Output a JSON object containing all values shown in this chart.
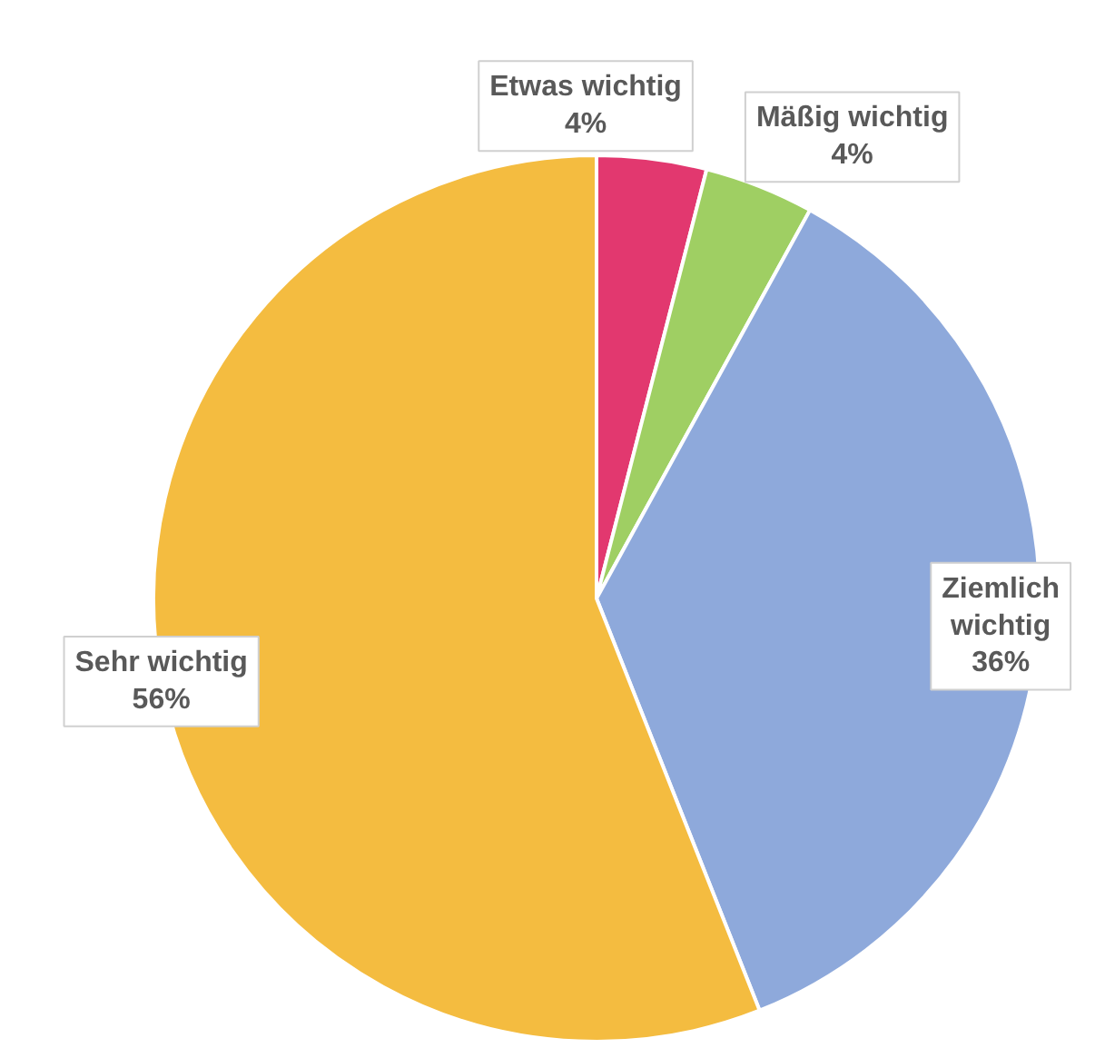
{
  "chart_data": {
    "type": "pie",
    "categories": [
      "Etwas wichtig",
      "Mäßig wichtig",
      "Ziemlich wichtig",
      "Sehr wichtig"
    ],
    "values": [
      4,
      4,
      36,
      56
    ],
    "colors": [
      "#e2386f",
      "#9fcf63",
      "#8ea9db",
      "#f4bc40"
    ],
    "value_labels": [
      "4%",
      "4%",
      "36%",
      "56%"
    ]
  }
}
